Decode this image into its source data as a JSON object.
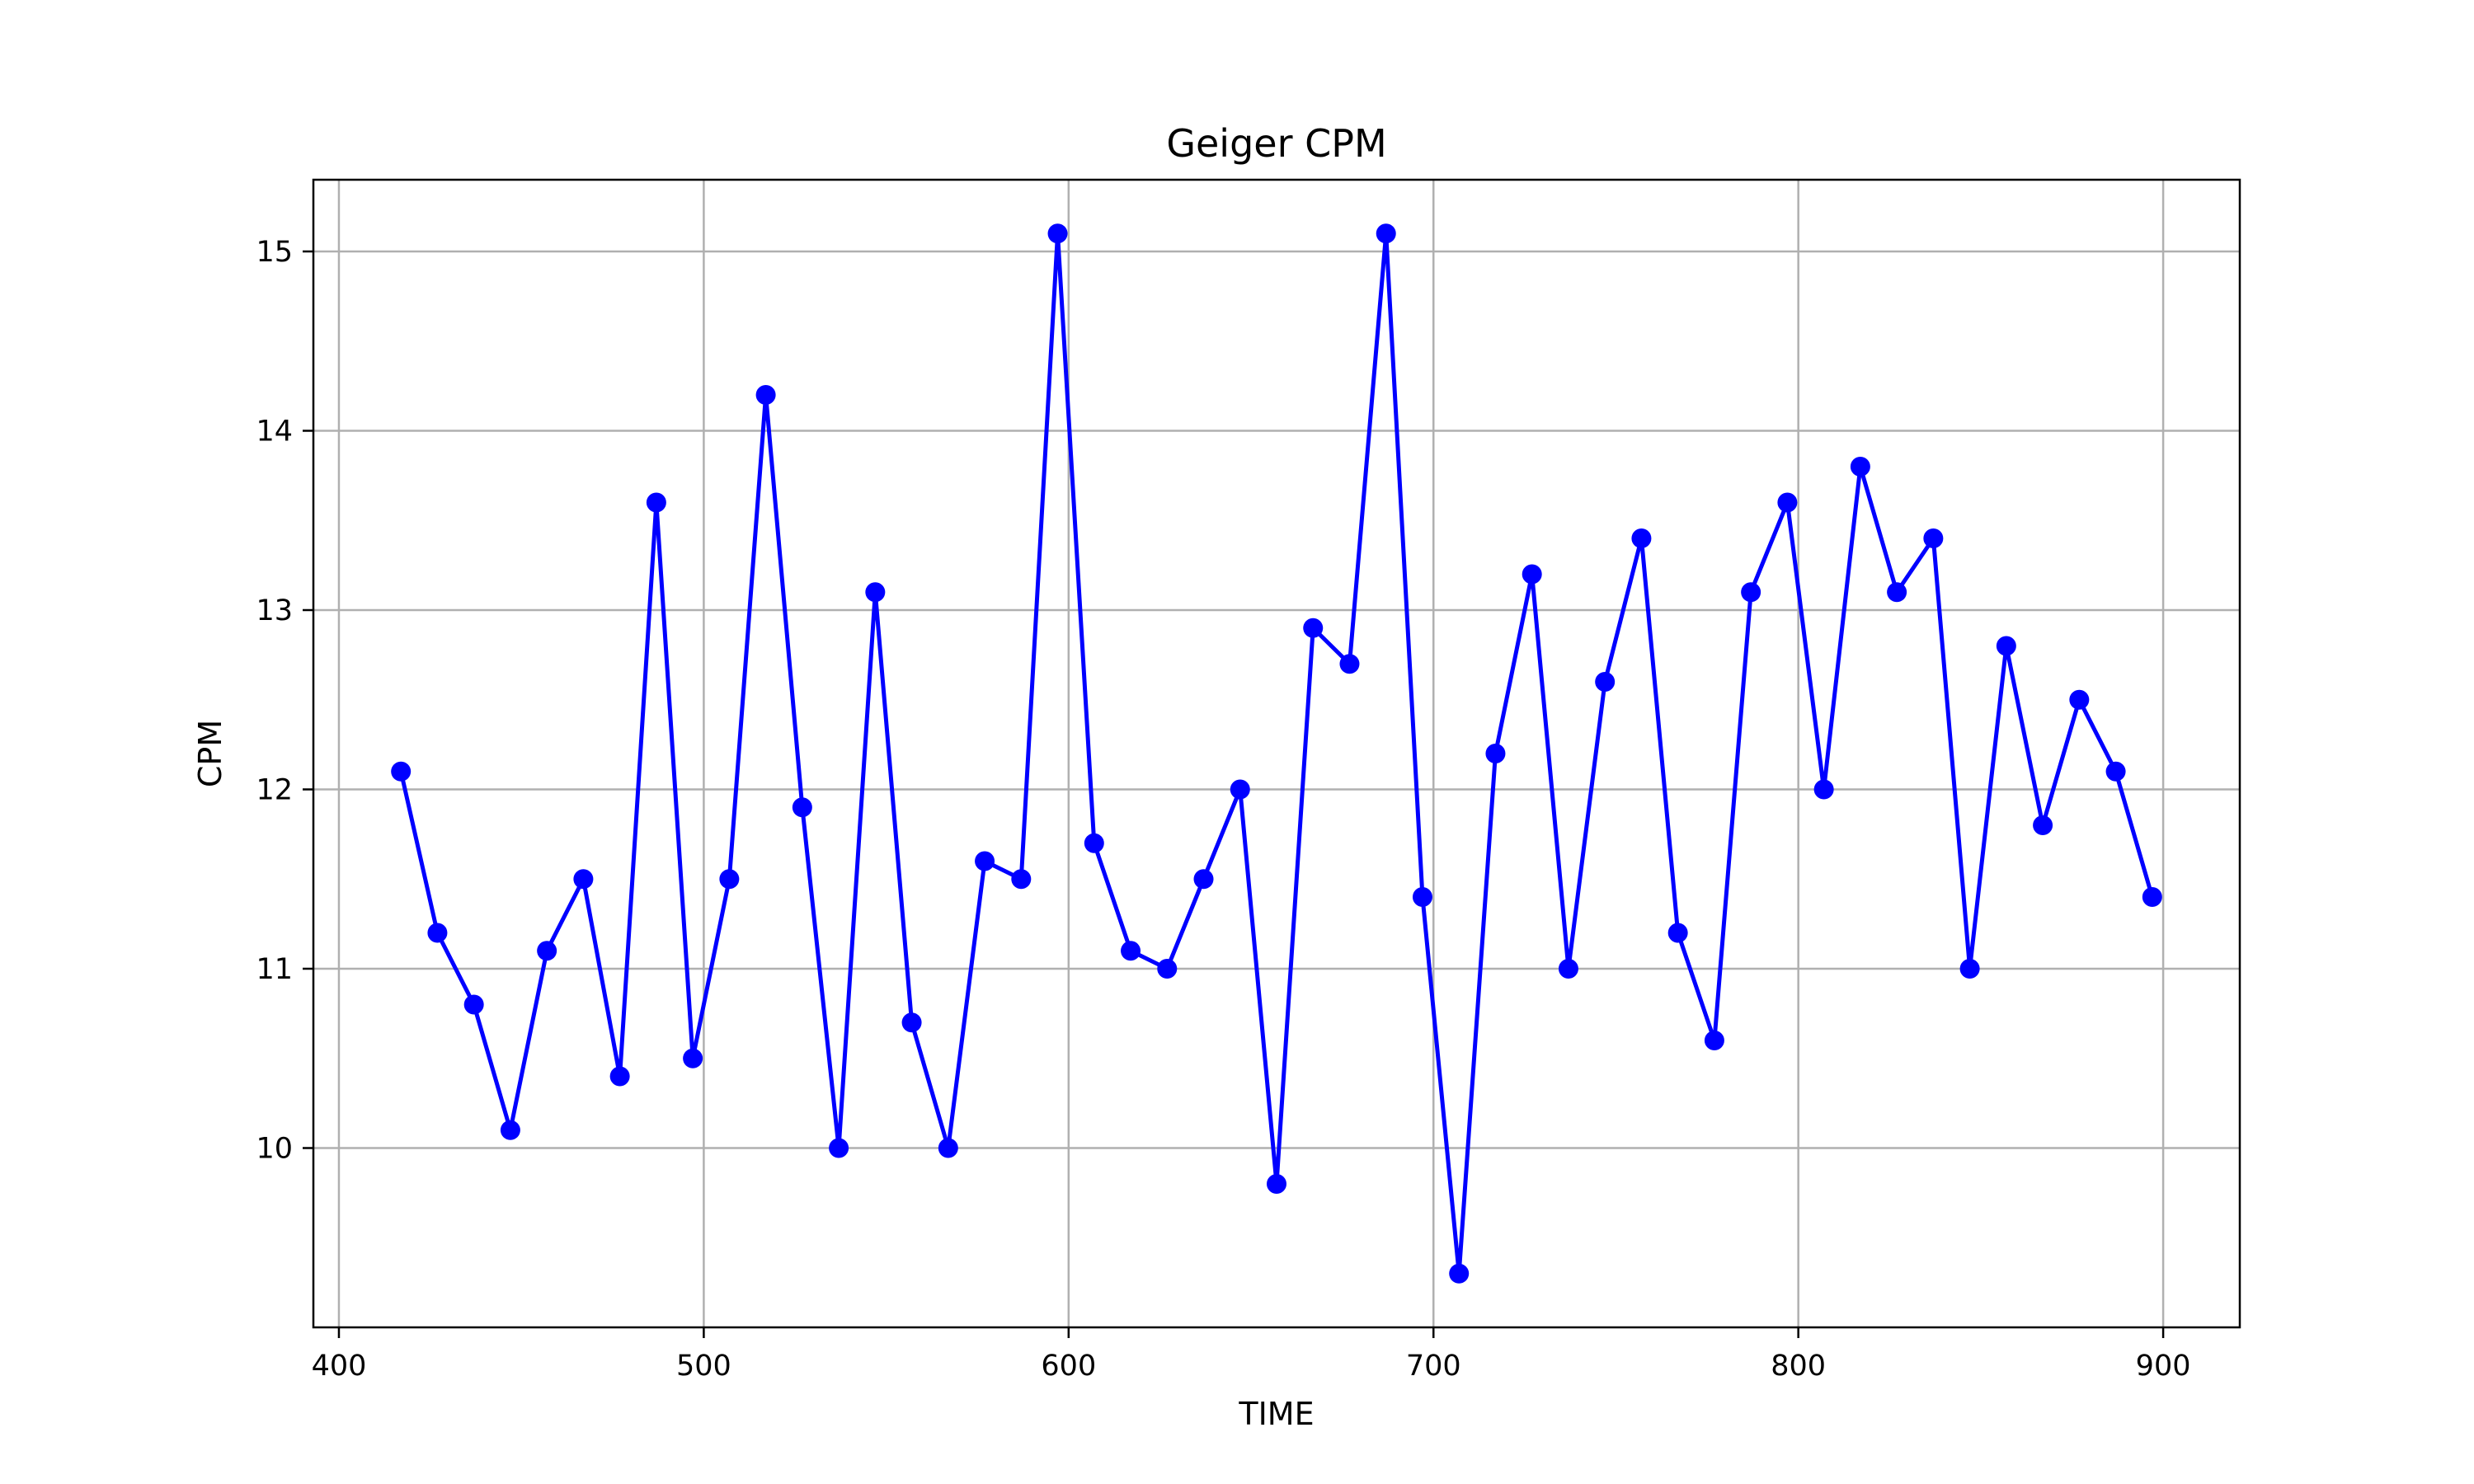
{
  "chart_data": {
    "type": "line",
    "title": "Geiger CPM",
    "xlabel": "TIME",
    "ylabel": "CPM",
    "xlim": [
      393,
      921
    ],
    "ylim": [
      9.0,
      15.4
    ],
    "xticks": [
      400,
      500,
      600,
      700,
      800,
      900
    ],
    "yticks": [
      10,
      11,
      12,
      13,
      14,
      15
    ],
    "grid": true,
    "color": "#0000ff",
    "series": [
      {
        "x": [
          417,
          427,
          437,
          447,
          457,
          467,
          477,
          487,
          497,
          507,
          517,
          527,
          537,
          547,
          557,
          567,
          577,
          587,
          597,
          607,
          617,
          627,
          637,
          647,
          657,
          667,
          677,
          687,
          697,
          707,
          717,
          727,
          737,
          747,
          757,
          767,
          777,
          787,
          797,
          807,
          817,
          827,
          837,
          847,
          857,
          867,
          877,
          887,
          897
        ],
        "values": [
          12.1,
          11.2,
          10.8,
          10.1,
          11.1,
          11.5,
          10.4,
          13.6,
          10.5,
          11.5,
          14.2,
          11.9,
          10.0,
          13.1,
          10.7,
          10.0,
          11.6,
          11.5,
          15.1,
          11.7,
          11.1,
          11.0,
          11.5,
          12.0,
          9.8,
          12.9,
          12.7,
          15.1,
          11.4,
          9.3,
          12.2,
          13.2,
          11.0,
          12.6,
          13.4,
          11.2,
          10.6,
          13.1,
          13.6,
          12.0,
          13.8,
          13.1,
          13.4,
          11.0,
          12.8,
          11.8,
          12.5,
          12.1,
          11.4
        ]
      }
    ]
  }
}
